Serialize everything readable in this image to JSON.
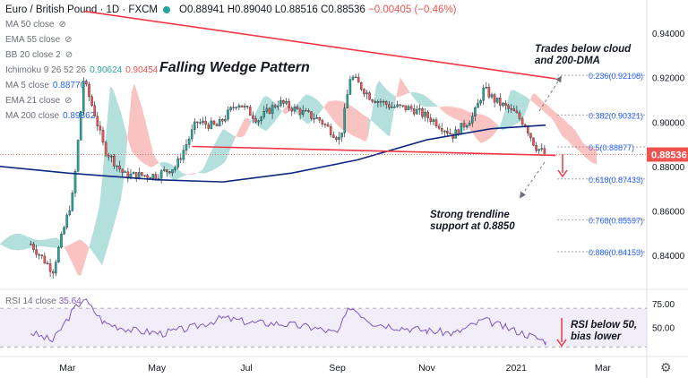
{
  "header": {
    "symbol": "Euro / British Pound · 1D · FXCM",
    "ohlc": "O0.88941 H0.89040 L0.88516 C0.88536",
    "change": "−0.00405 (−0.46%)"
  },
  "indicators": [
    {
      "label": "MA 50 close",
      "value": "",
      "hidden": true
    },
    {
      "label": "EMA 55 close",
      "value": "",
      "hidden": true
    },
    {
      "label": "BB 20 close 2",
      "value": "",
      "hidden": true
    },
    {
      "label": "Ichimoku 9 26 52 26",
      "value": "0.90624",
      "value2": "0.90454"
    },
    {
      "label": "MA 5 close",
      "value": "0.88770"
    },
    {
      "label": "EMA 21 close",
      "value": "",
      "hidden": true
    },
    {
      "label": "MA 200 close",
      "value": "0.89862"
    }
  ],
  "indicator_colors": {
    "ichimoku_a": "#26a69a",
    "ichimoku_b": "#ef5350",
    "ma5": "#2962ff",
    "ma200": "#2962ff"
  },
  "rsi": {
    "label": "RSI 14 close",
    "value": "35.64",
    "color": "#7e57c2"
  },
  "annotations": {
    "title": "Falling Wedge Pattern",
    "trades_below_1": "Trades below cloud",
    "trades_below_2": "and 200-DMA",
    "support_1": "Strong trendline",
    "support_2": "support at 0.8850",
    "rsi_note_1": "RSI below 50,",
    "rsi_note_2": "bias lower"
  },
  "price_tag": {
    "value": "0.88536",
    "color": "#ef5350"
  },
  "chart_data": {
    "type": "candlestick",
    "title": "Euro / British Pound · 1D · FXCM",
    "x_ticks": [
      "Mar",
      "May",
      "Jul",
      "Sep",
      "Nov",
      "2021",
      "Mar"
    ],
    "y_ticks": [
      "0.94000",
      "0.92000",
      "0.90000",
      "0.88000",
      "0.86000",
      "0.84000"
    ],
    "ylim": [
      0.825,
      0.953
    ],
    "close_path": {
      "dates": [
        "2020-02-05",
        "2020-02-20",
        "2020-03-05",
        "2020-03-12",
        "2020-03-19",
        "2020-03-26",
        "2020-04-09",
        "2020-04-30",
        "2020-05-14",
        "2020-05-28",
        "2020-06-11",
        "2020-06-25",
        "2020-07-09",
        "2020-07-23",
        "2020-08-06",
        "2020-08-20",
        "2020-09-03",
        "2020-09-10",
        "2020-09-24",
        "2020-10-08",
        "2020-10-22",
        "2020-11-05",
        "2020-11-19",
        "2020-12-03",
        "2020-12-10",
        "2020-12-17",
        "2020-12-31",
        "2021-01-07",
        "2021-01-14",
        "2021-01-21"
      ],
      "values": [
        0.845,
        0.833,
        0.868,
        0.919,
        0.905,
        0.888,
        0.876,
        0.876,
        0.88,
        0.9,
        0.898,
        0.909,
        0.901,
        0.909,
        0.905,
        0.901,
        0.892,
        0.921,
        0.911,
        0.907,
        0.906,
        0.901,
        0.894,
        0.903,
        0.915,
        0.91,
        0.904,
        0.899,
        0.889,
        0.8854
      ]
    },
    "ma200": {
      "dates": [
        "2020-01-15",
        "2020-03-01",
        "2020-05-01",
        "2020-06-15",
        "2020-08-01",
        "2020-09-15",
        "2020-11-01",
        "2020-12-15",
        "2021-01-21"
      ],
      "values": [
        0.88,
        0.877,
        0.874,
        0.873,
        0.877,
        0.883,
        0.892,
        0.897,
        0.8986
      ]
    },
    "resistance_line": {
      "start": [
        "2020-03-12",
        0.95
      ],
      "end": [
        "2021-01-28",
        0.9195
      ]
    },
    "support_line": {
      "start": [
        "2020-05-25",
        0.889
      ],
      "end": [
        "2021-01-28",
        0.885
      ]
    },
    "fibonacci": [
      {
        "label": "0.236(0.92108)",
        "value": 0.92108
      },
      {
        "label": "0.382(0.90321)",
        "value": 0.90321
      },
      {
        "label": "0.5(0.88877)",
        "value": 0.88877
      },
      {
        "label": "0.618(0.87433)",
        "value": 0.87433
      },
      {
        "label": "0.768(0.85597)",
        "value": 0.85597
      },
      {
        "label": "0.886(0.84153)",
        "value": 0.84153
      }
    ],
    "rsi": {
      "y_ticks": [
        "75.00",
        "50.00"
      ],
      "ylim": [
        20,
        85
      ],
      "dates": [
        "2020-02-05",
        "2020-02-20",
        "2020-03-05",
        "2020-03-12",
        "2020-03-26",
        "2020-04-15",
        "2020-05-05",
        "2020-05-25",
        "2020-06-15",
        "2020-07-05",
        "2020-07-25",
        "2020-08-15",
        "2020-09-01",
        "2020-09-10",
        "2020-09-25",
        "2020-10-15",
        "2020-11-01",
        "2020-11-20",
        "2020-12-10",
        "2020-12-25",
        "2021-01-10",
        "2021-01-21"
      ],
      "values": [
        45,
        36,
        68,
        80,
        55,
        47,
        44,
        50,
        60,
        55,
        54,
        50,
        44,
        72,
        55,
        50,
        47,
        44,
        58,
        50,
        42,
        35.64
      ]
    }
  }
}
